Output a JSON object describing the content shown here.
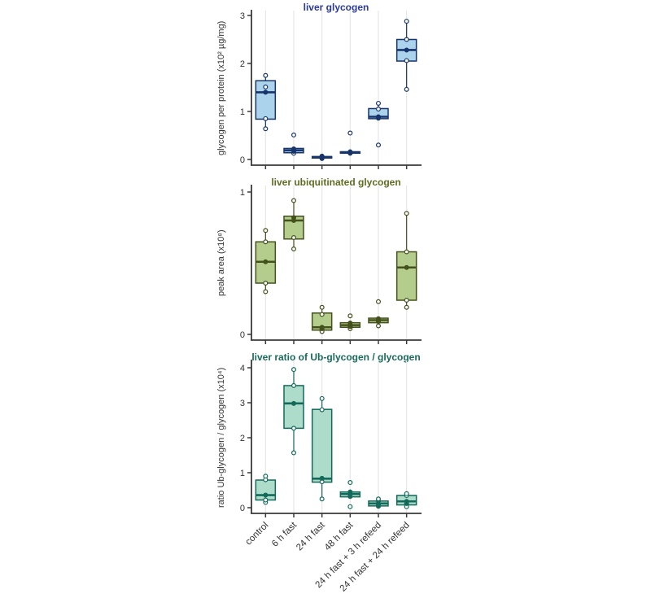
{
  "figure": {
    "background": "#ffffff"
  },
  "chart_data": [
    {
      "type": "box",
      "title": "liver glycogen",
      "title_color": "#2b3a9e",
      "box_fill": "#abd3ec",
      "box_stroke": "#17356b",
      "ylabel": "glycogen per protein (x10² µg/mg)",
      "ylim": [
        0,
        3.1
      ],
      "yticks": [
        0,
        1,
        2,
        3
      ],
      "grid": "vertical",
      "legend": "none",
      "categories": [
        "control",
        "6 h fast",
        "24 h fast",
        "48 h fast",
        "24 h fast + 3 h refeed",
        "24 h fast + 24 h refeed"
      ],
      "boxes": [
        {
          "category": "control",
          "whisker_lo": 0.64,
          "q1": 0.84,
          "median": 1.4,
          "q3": 1.64,
          "whisker_hi": 1.75,
          "points": [
            0.64,
            0.85,
            1.4,
            1.51,
            1.75
          ]
        },
        {
          "category": "6 h fast",
          "whisker_lo": 0.12,
          "q1": 0.14,
          "median": 0.19,
          "q3": 0.23,
          "whisker_hi": 0.26,
          "points": [
            0.13,
            0.17,
            0.19,
            0.22,
            0.51
          ]
        },
        {
          "category": "24 h fast",
          "whisker_lo": 0.02,
          "q1": 0.03,
          "median": 0.05,
          "q3": 0.06,
          "whisker_hi": 0.07,
          "points": [
            0.02,
            0.04,
            0.05,
            0.06,
            0.07
          ]
        },
        {
          "category": "48 h fast",
          "whisker_lo": 0.12,
          "q1": 0.13,
          "median": 0.15,
          "q3": 0.16,
          "whisker_hi": 0.17,
          "points": [
            0.13,
            0.14,
            0.15,
            0.16,
            0.55
          ]
        },
        {
          "category": "24 h fast + 3 h refeed",
          "whisker_lo": 0.84,
          "q1": 0.85,
          "median": 0.89,
          "q3": 1.06,
          "whisker_hi": 1.17,
          "points": [
            0.3,
            0.86,
            0.89,
            1.05,
            1.17
          ]
        },
        {
          "category": "24 h fast + 24 h refeed",
          "whisker_lo": 1.46,
          "q1": 2.05,
          "median": 2.28,
          "q3": 2.5,
          "whisker_hi": 2.88,
          "points": [
            1.46,
            2.06,
            2.28,
            2.5,
            2.88
          ]
        }
      ]
    },
    {
      "type": "box",
      "title": "liver ubiquitinated glycogen",
      "title_color": "#5f6c22",
      "box_fill": "#b5cd8c",
      "box_stroke": "#44511d",
      "ylabel": "peak area (x10⁸)",
      "ylim": [
        0,
        1.03
      ],
      "yticks": [
        0,
        1
      ],
      "grid": "vertical",
      "legend": "none",
      "categories": [
        "control",
        "6 h fast",
        "24 h fast",
        "48 h fast",
        "24 h fast + 3 h refeed",
        "24 h fast + 24 h refeed"
      ],
      "boxes": [
        {
          "category": "control",
          "whisker_lo": 0.3,
          "q1": 0.36,
          "median": 0.51,
          "q3": 0.65,
          "whisker_hi": 0.73,
          "points": [
            0.3,
            0.36,
            0.51,
            0.65,
            0.73
          ]
        },
        {
          "category": "6 h fast",
          "whisker_lo": 0.6,
          "q1": 0.67,
          "median": 0.8,
          "q3": 0.83,
          "whisker_hi": 0.94,
          "points": [
            0.6,
            0.68,
            0.8,
            0.82,
            0.94
          ]
        },
        {
          "category": "24 h fast",
          "whisker_lo": 0.02,
          "q1": 0.03,
          "median": 0.05,
          "q3": 0.15,
          "whisker_hi": 0.19,
          "points": [
            0.02,
            0.04,
            0.05,
            0.14,
            0.19
          ]
        },
        {
          "category": "48 h fast",
          "whisker_lo": 0.04,
          "q1": 0.05,
          "median": 0.065,
          "q3": 0.082,
          "whisker_hi": 0.09,
          "points": [
            0.04,
            0.055,
            0.065,
            0.08,
            0.13
          ]
        },
        {
          "category": "24 h fast + 3 h refeed",
          "whisker_lo": 0.06,
          "q1": 0.082,
          "median": 0.1,
          "q3": 0.114,
          "whisker_hi": 0.12,
          "points": [
            0.06,
            0.09,
            0.1,
            0.11,
            0.23
          ]
        },
        {
          "category": "24 h fast + 24 h refeed",
          "whisker_lo": 0.19,
          "q1": 0.24,
          "median": 0.47,
          "q3": 0.58,
          "whisker_hi": 0.85,
          "points": [
            0.19,
            0.24,
            0.47,
            0.58,
            0.85
          ]
        }
      ]
    },
    {
      "type": "box",
      "title": "liver ratio of Ub-glycogen / glycogen",
      "title_color": "#186a5a",
      "box_fill": "#aedcca",
      "box_stroke": "#136a5a",
      "ylabel": "ratio Ub-glycogen / glycogen (x10⁴)",
      "ylim": [
        0,
        4.15
      ],
      "yticks": [
        0,
        1,
        2,
        3,
        4
      ],
      "grid": "vertical",
      "legend": "none",
      "categories": [
        "control",
        "6 h fast",
        "24 h fast",
        "48 h fast",
        "24 h fast + 3 h refeed",
        "24 h fast + 24 h refeed"
      ],
      "boxes": [
        {
          "category": "control",
          "whisker_lo": 0.15,
          "q1": 0.22,
          "median": 0.36,
          "q3": 0.79,
          "whisker_hi": 0.9,
          "points": [
            0.15,
            0.22,
            0.36,
            0.8,
            0.9
          ]
        },
        {
          "category": "6 h fast",
          "whisker_lo": 1.57,
          "q1": 2.27,
          "median": 2.98,
          "q3": 3.49,
          "whisker_hi": 3.95,
          "points": [
            1.57,
            2.27,
            2.98,
            3.49,
            3.95
          ]
        },
        {
          "category": "24 h fast",
          "whisker_lo": 0.25,
          "q1": 0.73,
          "median": 0.83,
          "q3": 2.81,
          "whisker_hi": 3.12,
          "points": [
            0.25,
            0.74,
            0.84,
            2.8,
            3.12
          ]
        },
        {
          "category": "48 h fast",
          "whisker_lo": 0.3,
          "q1": 0.31,
          "median": 0.39,
          "q3": 0.45,
          "whisker_hi": 0.47,
          "points": [
            0.03,
            0.32,
            0.4,
            0.45,
            0.72
          ]
        },
        {
          "category": "24 h fast + 3 h refeed",
          "whisker_lo": 0.04,
          "q1": 0.05,
          "median": 0.12,
          "q3": 0.19,
          "whisker_hi": 0.2,
          "points": [
            0.04,
            0.08,
            0.12,
            0.19,
            0.25
          ]
        },
        {
          "category": "24 h fast + 24 h refeed",
          "whisker_lo": 0.03,
          "q1": 0.08,
          "median": 0.18,
          "q3": 0.35,
          "whisker_hi": 0.4,
          "points": [
            0.03,
            0.12,
            0.18,
            0.35,
            0.4
          ]
        }
      ]
    }
  ]
}
